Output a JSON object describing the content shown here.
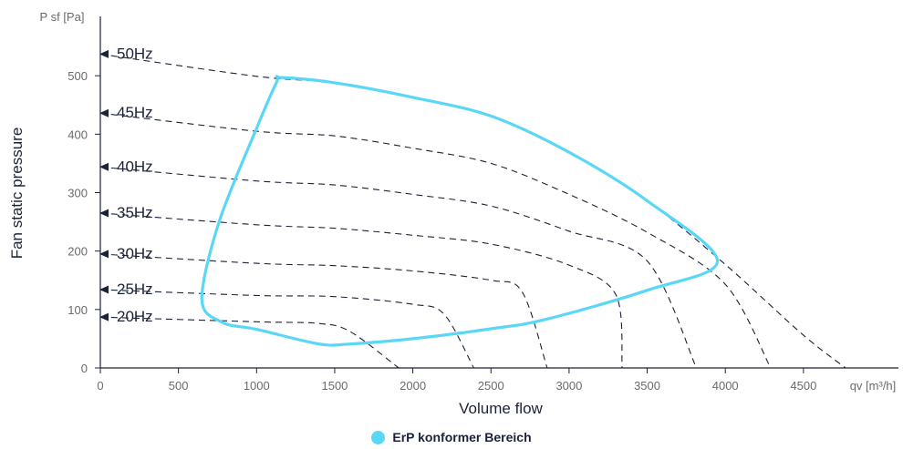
{
  "chart_data": {
    "type": "line",
    "y_unit_label": "P sf [Pa]",
    "x_unit_label": "qv [m³/h]",
    "xlabel": "Volume flow",
    "ylabel": "Fan static pressure",
    "xlim": [
      0,
      5000
    ],
    "ylim": [
      0,
      600
    ],
    "x_ticks": [
      "0",
      "500",
      "1000",
      "1500",
      "2000",
      "2500",
      "3000",
      "3500",
      "4000",
      "4500"
    ],
    "y_ticks": [
      "0",
      "100",
      "200",
      "300",
      "400",
      "500"
    ],
    "colors": {
      "erp": "#5ad7f6",
      "curve": "#1c2237",
      "axis": "#1c2237"
    },
    "speed_curves": [
      {
        "label": "50Hz",
        "points": [
          [
            0,
            537
          ],
          [
            1000,
            499
          ],
          [
            1500,
            488
          ],
          [
            2000,
            463
          ],
          [
            2500,
            431
          ],
          [
            3000,
            369
          ],
          [
            3500,
            286
          ],
          [
            4000,
            177
          ],
          [
            4500,
            56
          ],
          [
            4770,
            0
          ]
        ]
      },
      {
        "label": "45Hz",
        "points": [
          [
            0,
            436
          ],
          [
            1000,
            405
          ],
          [
            1500,
            397
          ],
          [
            2000,
            376
          ],
          [
            2500,
            350
          ],
          [
            3000,
            297
          ],
          [
            3500,
            232
          ],
          [
            4000,
            143
          ],
          [
            4290,
            0
          ]
        ]
      },
      {
        "label": "40Hz",
        "points": [
          [
            0,
            344
          ],
          [
            1000,
            320
          ],
          [
            1500,
            313
          ],
          [
            2000,
            297
          ],
          [
            2500,
            277
          ],
          [
            3000,
            234
          ],
          [
            3500,
            183
          ],
          [
            3815,
            0
          ]
        ]
      },
      {
        "label": "35Hz",
        "points": [
          [
            0,
            265
          ],
          [
            1000,
            245
          ],
          [
            1500,
            239
          ],
          [
            2000,
            227
          ],
          [
            2500,
            212
          ],
          [
            3000,
            176
          ],
          [
            3300,
            125
          ],
          [
            3340,
            0
          ]
        ]
      },
      {
        "label": "30Hz",
        "points": [
          [
            0,
            195
          ],
          [
            1000,
            179
          ],
          [
            1500,
            175
          ],
          [
            2000,
            166
          ],
          [
            2500,
            150
          ],
          [
            2700,
            130
          ],
          [
            2860,
            0
          ]
        ]
      },
      {
        "label": "25Hz",
        "points": [
          [
            0,
            134
          ],
          [
            1000,
            124
          ],
          [
            1500,
            122
          ],
          [
            2000,
            109
          ],
          [
            2200,
            92
          ],
          [
            2390,
            0
          ]
        ]
      },
      {
        "label": "20Hz",
        "points": [
          [
            0,
            87
          ],
          [
            1000,
            79
          ],
          [
            1400,
            76
          ],
          [
            1600,
            62
          ],
          [
            1910,
            0
          ]
        ]
      }
    ],
    "series": [
      {
        "name": "ErP konformer Bereich",
        "points": [
          [
            1155,
            497
          ],
          [
            1500,
            488
          ],
          [
            2000,
            463
          ],
          [
            2500,
            431
          ],
          [
            3000,
            369
          ],
          [
            3500,
            286
          ],
          [
            3950,
            183
          ],
          [
            3500,
            133
          ],
          [
            2850,
            83
          ],
          [
            2500,
            67
          ],
          [
            2000,
            50
          ],
          [
            1600,
            41
          ],
          [
            1400,
            41
          ],
          [
            1000,
            66
          ],
          [
            780,
            78
          ],
          [
            650,
            117
          ],
          [
            760,
            250
          ],
          [
            1000,
            410
          ],
          [
            1130,
            490
          ]
        ]
      }
    ]
  },
  "legend": {
    "label": "ErP konformer Bereich"
  }
}
